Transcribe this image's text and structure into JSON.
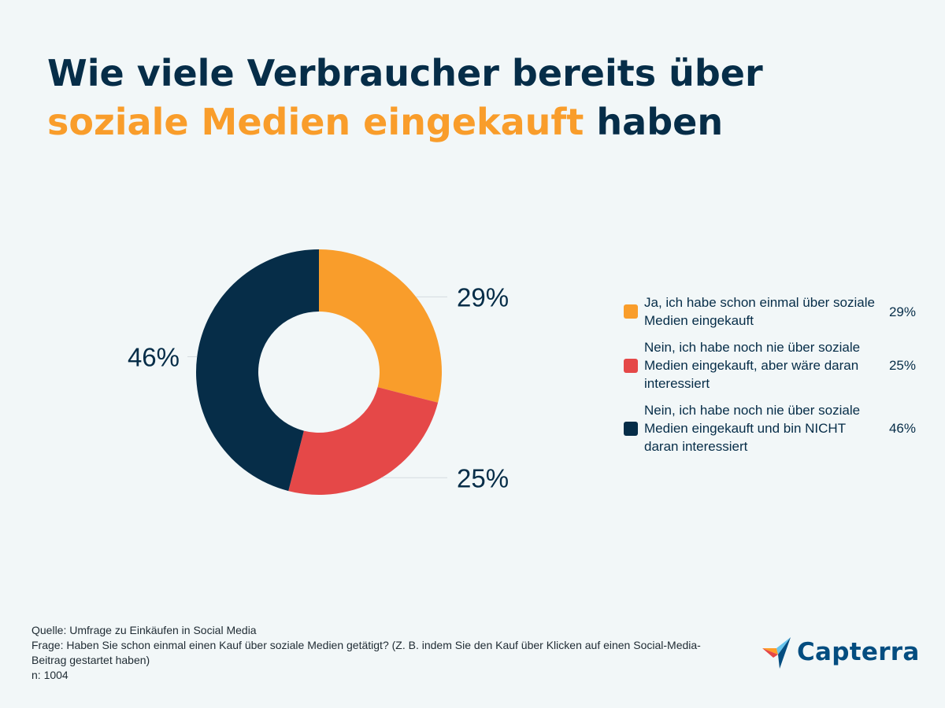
{
  "title": {
    "part1": "Wie viele Verbraucher bereits über ",
    "highlight": "soziale Medien eingekauft",
    "part2": " haben"
  },
  "colors": {
    "navy": "#062d48",
    "orange": "#f99d2b",
    "red": "#e54848",
    "background": "#f2f7f8"
  },
  "chart_data": {
    "type": "pie",
    "variant": "donut",
    "slices": [
      {
        "label": "Ja, ich habe schon einmal über soziale Medien eingekauft",
        "value": 29,
        "value_label": "29%",
        "color": "#f99d2b"
      },
      {
        "label": "Nein, ich habe noch nie über soziale Medien eingekauft, aber wäre daran interessiert",
        "value": 25,
        "value_label": "25%",
        "color": "#e54848"
      },
      {
        "label": "Nein, ich habe noch nie über soziale Medien eingekauft und bin NICHT daran interessiert",
        "value": 46,
        "value_label": "46%",
        "color": "#062d48"
      }
    ],
    "legend_placement": "right"
  },
  "legend": [
    {
      "label": "Ja, ich habe schon einmal über soziale Medien eingekauft",
      "value": "29%",
      "color": "#f99d2b"
    },
    {
      "label": "Nein, ich habe noch nie über soziale Medien eingekauft, aber wäre daran interessiert",
      "value": "25%",
      "color": "#e54848"
    },
    {
      "label": "Nein, ich habe noch nie über soziale Medien eingekauft und bin NICHT daran interessiert",
      "value": "46%",
      "color": "#062d48"
    }
  ],
  "footer": {
    "source": "Quelle: Umfrage zu Einkäufen in Social Media",
    "question": "Frage: Haben Sie schon einmal einen Kauf über soziale Medien getätigt? (Z. B. indem Sie den Kauf über Klicken auf einen Social-Media-Beitrag gestartet haben)",
    "n": "n: 1004"
  },
  "logo": {
    "text": "Capterra",
    "icon": "capterra-logo-icon"
  }
}
